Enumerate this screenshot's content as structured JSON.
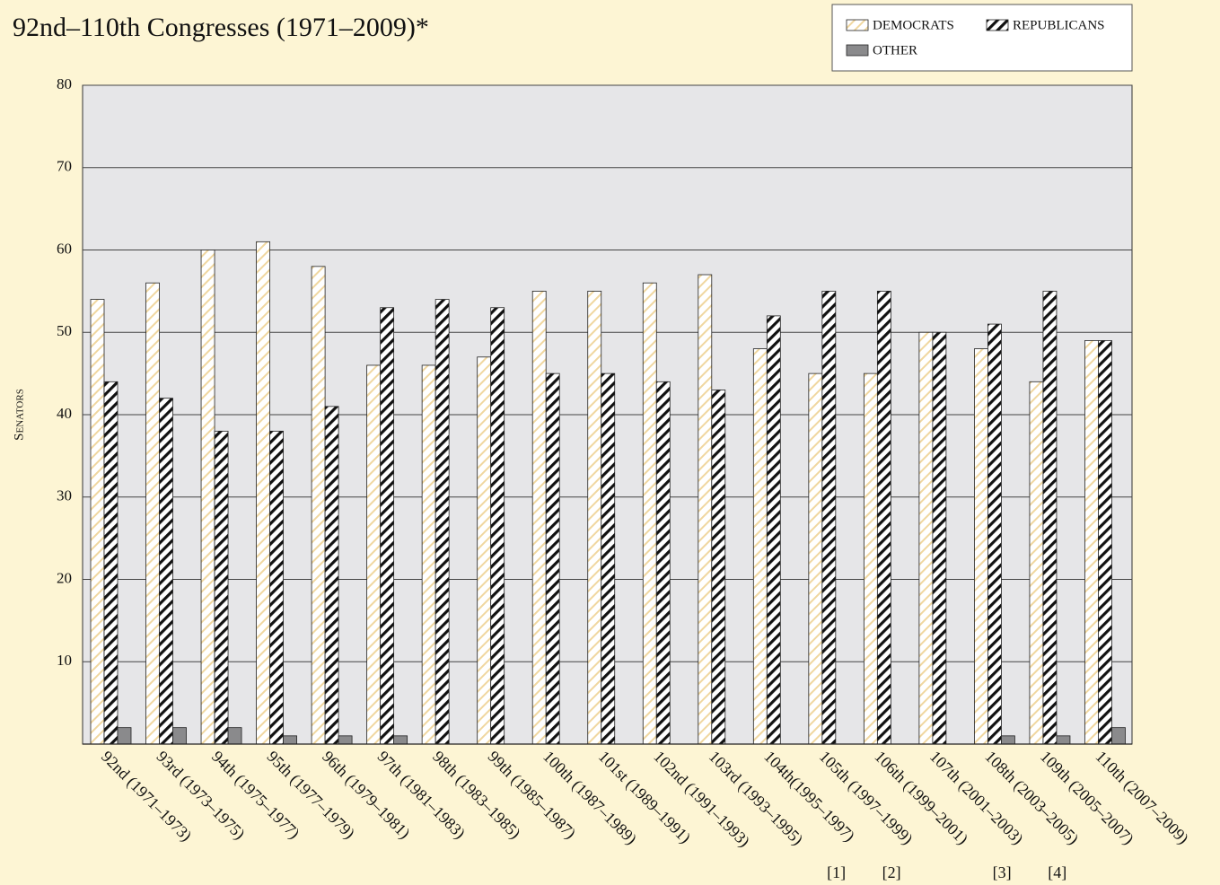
{
  "chart_data": {
    "type": "bar",
    "title": "92nd–110th Congresses (1971–2009)*",
    "y_label": "Senators",
    "categories": [
      "92nd (1971–1973)",
      "93rd (1973–1975)",
      "94th (1975–1977)",
      "95th (1977–1979)",
      "96th (1979–1981)",
      "97th (1981–1983)",
      "98th (1983–1985)",
      "99th (1985–1987)",
      "100th (1987–1989)",
      "101st (1989–1991)",
      "102nd (1991–1993)",
      "103rd (1993–1995)",
      "104th(1995–1997)",
      "105th (1997–1999)",
      "106th (1999–2001)",
      "107th (2001–2003)",
      "108th (2003–2005)",
      "109th (2005–2007)",
      "110th (2007–2009)"
    ],
    "category_notes": [
      null,
      null,
      null,
      null,
      null,
      null,
      null,
      null,
      null,
      null,
      null,
      null,
      null,
      "[1]",
      "[2]",
      null,
      "[3]",
      "[4]",
      null
    ],
    "series": [
      {
        "name": "DEMOCRATS",
        "color": "#f0d7a0",
        "pattern": "light-hatch",
        "values": [
          54,
          56,
          60,
          61,
          58,
          46,
          46,
          47,
          55,
          55,
          56,
          57,
          48,
          45,
          45,
          50,
          48,
          44,
          49
        ]
      },
      {
        "name": "REPUBLICANS",
        "color": "#111111",
        "pattern": "heavy-hatch",
        "values": [
          44,
          42,
          38,
          38,
          41,
          53,
          54,
          53,
          45,
          45,
          44,
          43,
          52,
          55,
          55,
          50,
          51,
          55,
          49
        ]
      },
      {
        "name": "OTHER",
        "color": "#8a8a8c",
        "pattern": "solid",
        "values": [
          2,
          2,
          2,
          1,
          1,
          1,
          0,
          0,
          0,
          0,
          0,
          0,
          0,
          0,
          0,
          0,
          1,
          1,
          2
        ]
      }
    ],
    "ylim": [
      0,
      80
    ],
    "yticks": [
      10,
      20,
      30,
      40,
      50,
      60,
      70,
      80
    ],
    "grid": true,
    "legend": "top-right"
  }
}
